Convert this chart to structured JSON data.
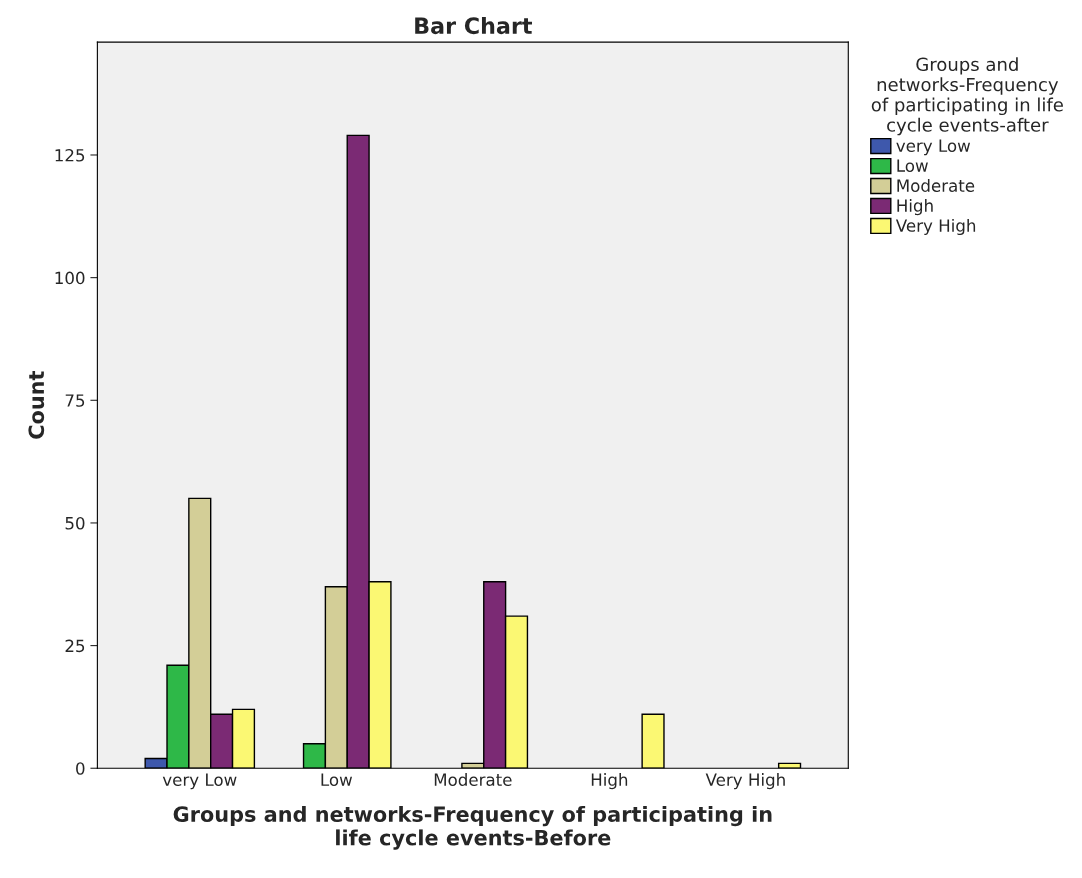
{
  "chart_data": {
    "type": "bar",
    "title": "Bar Chart",
    "xlabel": "Groups and networks-Frequency of participating in\nlife cycle events-Before",
    "ylabel": "Count",
    "legend_title": "Groups and\nnetworks-Frequency\nof participating in life\ncycle events-after",
    "categories": [
      "very Low",
      "Low",
      "Moderate",
      "High",
      "Very High"
    ],
    "series": [
      {
        "name": "very Low",
        "color": "#3e58ac",
        "values": [
          2,
          null,
          null,
          null,
          null
        ]
      },
      {
        "name": "Low",
        "color": "#2eb848",
        "values": [
          21,
          5,
          null,
          null,
          null
        ]
      },
      {
        "name": "Moderate",
        "color": "#d3ce97",
        "values": [
          55,
          37,
          1,
          null,
          null
        ]
      },
      {
        "name": "High",
        "color": "#7b2a74",
        "values": [
          11,
          129,
          38,
          null,
          null
        ]
      },
      {
        "name": "Very High",
        "color": "#fbf873",
        "values": [
          12,
          38,
          31,
          11,
          1
        ]
      }
    ],
    "ylim": [
      0,
      148
    ],
    "yticks": [
      0,
      25,
      50,
      75,
      100,
      125
    ],
    "grid": false,
    "legend": "top right"
  }
}
